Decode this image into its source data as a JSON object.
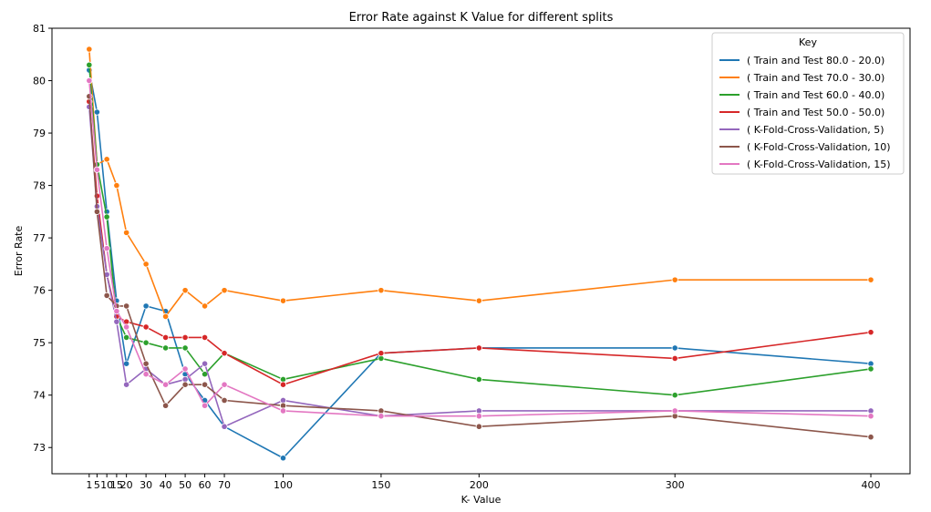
{
  "chart_data": {
    "type": "line",
    "title": "Error Rate against K Value for different splits",
    "xlabel": "K- Value",
    "ylabel": "Error Rate",
    "x": [
      1,
      5,
      10,
      15,
      20,
      30,
      40,
      50,
      60,
      70,
      100,
      150,
      200,
      300,
      400
    ],
    "x_tick_labels": [
      "1",
      "5",
      "10",
      "15",
      "20",
      "30",
      "40",
      "50",
      "60",
      "70",
      "100",
      "150",
      "200",
      "300",
      "400"
    ],
    "y_ticks": [
      73,
      74,
      75,
      76,
      77,
      78,
      79,
      80,
      81
    ],
    "xlim": [
      -18,
      420
    ],
    "ylim": [
      72.5,
      81
    ],
    "grid": false,
    "legend": {
      "title": "Key",
      "placement": "top-right"
    },
    "series": [
      {
        "name": "( Train and Test 80.0 - 20.0)",
        "color": "#1f77b4",
        "values": [
          80.2,
          79.4,
          77.5,
          75.8,
          74.6,
          75.7,
          75.6,
          74.4,
          73.9,
          73.4,
          72.8,
          74.8,
          74.9,
          74.9,
          74.6
        ]
      },
      {
        "name": "( Train and Test 70.0 - 30.0)",
        "color": "#ff7f0e",
        "values": [
          80.6,
          78.4,
          78.5,
          78.0,
          77.1,
          76.5,
          75.5,
          76.0,
          75.7,
          76.0,
          75.8,
          76.0,
          75.8,
          76.2,
          76.2
        ]
      },
      {
        "name": "( Train and Test 60.0 - 40.0)",
        "color": "#2ca02c",
        "values": [
          80.3,
          78.4,
          77.4,
          75.5,
          75.1,
          75.0,
          74.9,
          74.9,
          74.4,
          74.8,
          74.3,
          74.7,
          74.3,
          74.0,
          74.5
        ]
      },
      {
        "name": "( Train and Test 50.0 - 50.0)",
        "color": "#d62728",
        "values": [
          79.6,
          77.8,
          76.3,
          75.5,
          75.4,
          75.3,
          75.1,
          75.1,
          75.1,
          74.8,
          74.2,
          74.8,
          74.9,
          74.7,
          75.2
        ]
      },
      {
        "name": "( K-Fold-Cross-Validation, 5)",
        "color": "#9467bd",
        "values": [
          79.5,
          77.6,
          76.3,
          75.4,
          74.2,
          74.5,
          74.2,
          74.3,
          74.6,
          73.4,
          73.9,
          73.6,
          73.7,
          73.7,
          73.7
        ]
      },
      {
        "name": "( K-Fold-Cross-Validation, 10)",
        "color": "#8c564b",
        "values": [
          79.7,
          77.5,
          75.9,
          75.7,
          75.7,
          74.6,
          73.8,
          74.2,
          74.2,
          73.9,
          73.8,
          73.7,
          73.4,
          73.6,
          73.2
        ]
      },
      {
        "name": "( K-Fold-Cross-Validation, 15)",
        "color": "#e377c2",
        "values": [
          80.0,
          78.3,
          76.8,
          75.6,
          75.3,
          74.4,
          74.2,
          74.5,
          73.8,
          74.2,
          73.7,
          73.6,
          73.6,
          73.7,
          73.6
        ]
      }
    ]
  }
}
